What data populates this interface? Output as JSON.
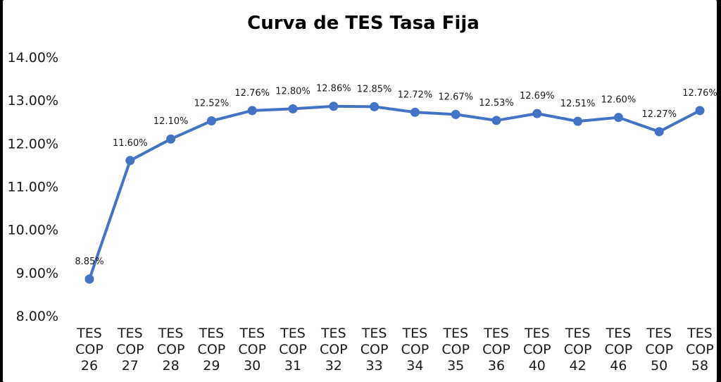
{
  "chart_data": {
    "type": "line",
    "title": "Curva de TES Tasa Fija",
    "xlabel": "",
    "ylabel": "",
    "categories": [
      [
        "TES",
        "COP",
        "26"
      ],
      [
        "TES",
        "COP",
        "27"
      ],
      [
        "TES",
        "COP",
        "28"
      ],
      [
        "TES",
        "COP",
        "29"
      ],
      [
        "TES",
        "COP",
        "30"
      ],
      [
        "TES",
        "COP",
        "31"
      ],
      [
        "TES",
        "COP",
        "32"
      ],
      [
        "TES",
        "COP",
        "33"
      ],
      [
        "TES",
        "COP",
        "34"
      ],
      [
        "TES",
        "COP",
        "35"
      ],
      [
        "TES",
        "COP",
        "36"
      ],
      [
        "TES",
        "COP",
        "40"
      ],
      [
        "TES",
        "COP",
        "42"
      ],
      [
        "TES",
        "COP",
        "46"
      ],
      [
        "TES",
        "COP",
        "50"
      ],
      [
        "TES",
        "COP",
        "58"
      ]
    ],
    "series": [
      {
        "values": [
          8.85,
          11.6,
          12.1,
          12.52,
          12.76,
          12.8,
          12.86,
          12.85,
          12.72,
          12.67,
          12.53,
          12.69,
          12.51,
          12.6,
          12.27,
          12.76
        ],
        "labels": [
          "8.85%",
          "11.60%",
          "12.10%",
          "12.52%",
          "12.76%",
          "12.80%",
          "12.86%",
          "12.85%",
          "12.72%",
          "12.67%",
          "12.53%",
          "12.69%",
          "12.51%",
          "12.60%",
          "12.27%",
          "12.76%"
        ],
        "color": "#4472C4"
      }
    ],
    "ylim": [
      8,
      14
    ],
    "yticks": [
      8,
      9,
      10,
      11,
      12,
      13,
      14
    ],
    "ytick_labels": [
      "8.00%",
      "9.00%",
      "10.00%",
      "11.00%",
      "12.00%",
      "13.00%",
      "14.00%"
    ],
    "grid": false,
    "legend": "none"
  }
}
